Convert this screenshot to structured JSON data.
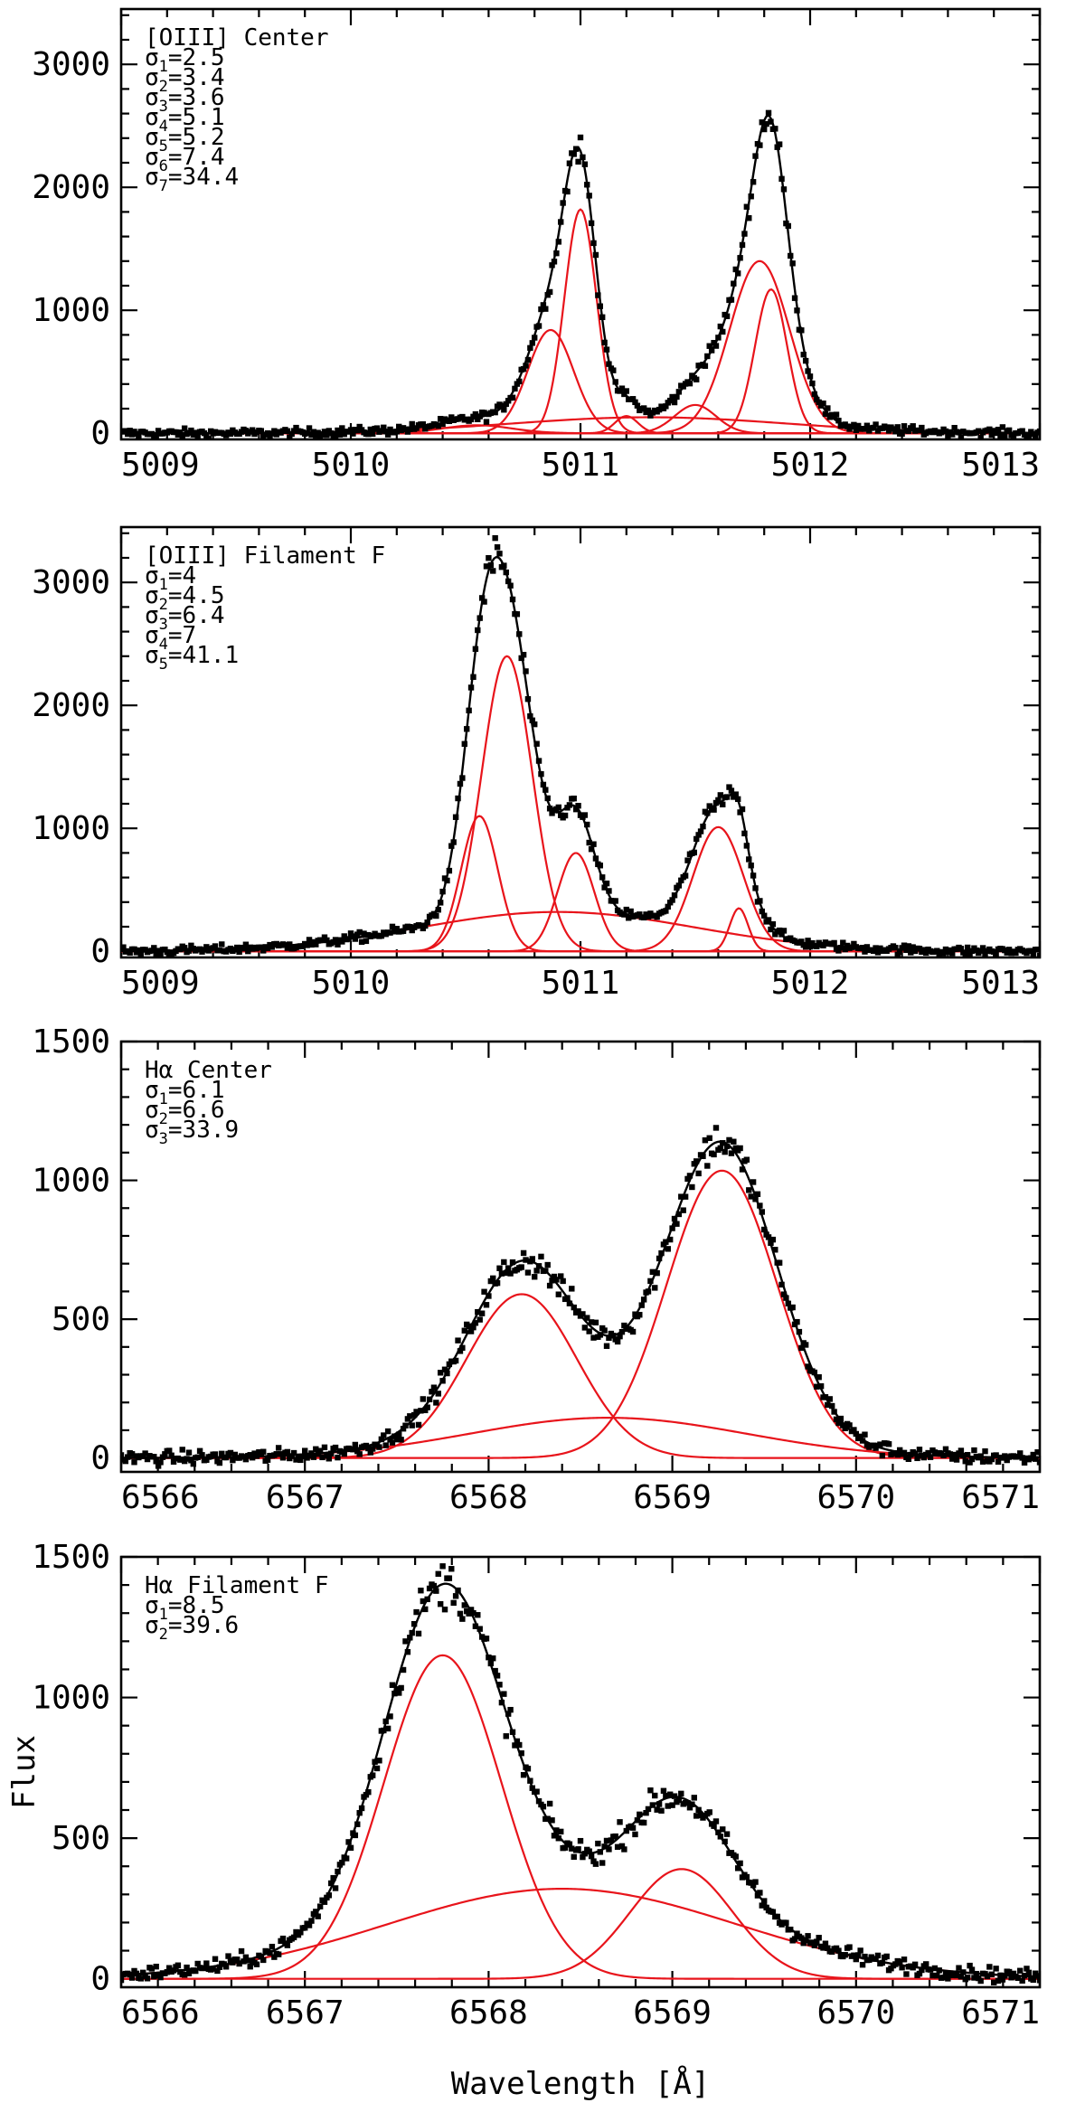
{
  "colors": {
    "data": "#000000",
    "component": "#e8141b",
    "total_fit": "#000000",
    "background": "#ffffff"
  },
  "axes": {
    "xlabel": "Wavelength [Å]",
    "ylabel": "Flux"
  },
  "chart_data": [
    {
      "type": "line",
      "title": "[OIII] Center",
      "xlim": [
        5009,
        5013
      ],
      "ylim": [
        -50,
        3450
      ],
      "x_ticks": [
        5009,
        5010,
        5011,
        5012,
        5013
      ],
      "x_minor_step": 0.2,
      "y_ticks": [
        0,
        1000,
        2000,
        3000
      ],
      "y_minor_step": 200,
      "sigmas": [
        {
          "label": "σ",
          "sub": "1",
          "value": "=2.5"
        },
        {
          "label": "σ",
          "sub": "2",
          "value": "=3.4"
        },
        {
          "label": "σ",
          "sub": "3",
          "value": "=3.6"
        },
        {
          "label": "σ",
          "sub": "4",
          "value": "=5.1"
        },
        {
          "label": "σ",
          "sub": "5",
          "value": "=5.2"
        },
        {
          "label": "σ",
          "sub": "6",
          "value": "=7.4"
        },
        {
          "label": "σ",
          "sub": "7",
          "value": "=34.4"
        }
      ],
      "components": [
        {
          "center": 5011.0,
          "amplitude": 1820,
          "sigma": 0.07
        },
        {
          "center": 5010.87,
          "amplitude": 840,
          "sigma": 0.1
        },
        {
          "center": 5011.83,
          "amplitude": 1170,
          "sigma": 0.07
        },
        {
          "center": 5011.78,
          "amplitude": 1400,
          "sigma": 0.13
        },
        {
          "center": 5011.5,
          "amplitude": 230,
          "sigma": 0.09
        },
        {
          "center": 5011.2,
          "amplitude": 140,
          "sigma": 0.05
        },
        {
          "center": 5010.55,
          "amplitude": 65,
          "sigma": 0.15
        },
        {
          "center": 5011.3,
          "amplitude": 130,
          "sigma": 0.6
        }
      ],
      "noise": 25
    },
    {
      "type": "line",
      "title": "[OIII] Filament F",
      "xlim": [
        5009,
        5013
      ],
      "ylim": [
        -50,
        3450
      ],
      "x_ticks": [
        5009,
        5010,
        5011,
        5012,
        5013
      ],
      "x_minor_step": 0.2,
      "y_ticks": [
        0,
        1000,
        2000,
        3000
      ],
      "y_minor_step": 200,
      "sigmas": [
        {
          "label": "σ",
          "sub": "1",
          "value": "=4"
        },
        {
          "label": "σ",
          "sub": "2",
          "value": "=4.5"
        },
        {
          "label": "σ",
          "sub": "3",
          "value": "=6.4"
        },
        {
          "label": "σ",
          "sub": "4",
          "value": "=7"
        },
        {
          "label": "σ",
          "sub": "5",
          "value": "=41.1"
        }
      ],
      "components": [
        {
          "center": 5010.68,
          "amplitude": 2400,
          "sigma": 0.11
        },
        {
          "center": 5010.56,
          "amplitude": 1100,
          "sigma": 0.08
        },
        {
          "center": 5010.98,
          "amplitude": 800,
          "sigma": 0.08
        },
        {
          "center": 5011.6,
          "amplitude": 1010,
          "sigma": 0.11
        },
        {
          "center": 5011.69,
          "amplitude": 350,
          "sigma": 0.04
        },
        {
          "center": 5010.9,
          "amplitude": 320,
          "sigma": 0.6
        }
      ],
      "noise": 25
    },
    {
      "type": "line",
      "title": "Hα Center",
      "xlim": [
        6566,
        6571
      ],
      "ylim": [
        -50,
        1500
      ],
      "x_ticks": [
        6566,
        6567,
        6568,
        6569,
        6570,
        6571
      ],
      "x_minor_step": 0.2,
      "y_ticks": [
        0,
        500,
        1000,
        1500
      ],
      "y_minor_step": 100,
      "sigmas": [
        {
          "label": "σ",
          "sub": "1",
          "value": "=6.1"
        },
        {
          "label": "σ",
          "sub": "2",
          "value": "=6.6"
        },
        {
          "label": "σ",
          "sub": "3",
          "value": "=33.9"
        }
      ],
      "components": [
        {
          "center": 6568.18,
          "amplitude": 590,
          "sigma": 0.3
        },
        {
          "center": 6569.27,
          "amplitude": 1035,
          "sigma": 0.3
        },
        {
          "center": 6568.65,
          "amplitude": 145,
          "sigma": 0.75
        }
      ],
      "noise": 18
    },
    {
      "type": "line",
      "title": "Hα Filament F",
      "xlim": [
        6566,
        6571
      ],
      "ylim": [
        -30,
        1500
      ],
      "x_ticks": [
        6566,
        6567,
        6568,
        6569,
        6570,
        6571
      ],
      "x_minor_step": 0.2,
      "y_ticks": [
        0,
        500,
        1000,
        1500
      ],
      "y_minor_step": 100,
      "sigmas": [
        {
          "label": "σ",
          "sub": "1",
          "value": "=8.5"
        },
        {
          "label": "σ",
          "sub": "2",
          "value": "=39.6"
        }
      ],
      "components": [
        {
          "center": 6567.75,
          "amplitude": 1150,
          "sigma": 0.32
        },
        {
          "center": 6569.05,
          "amplitude": 390,
          "sigma": 0.28
        },
        {
          "center": 6568.4,
          "amplitude": 320,
          "sigma": 0.95
        }
      ],
      "noise": 18
    }
  ]
}
